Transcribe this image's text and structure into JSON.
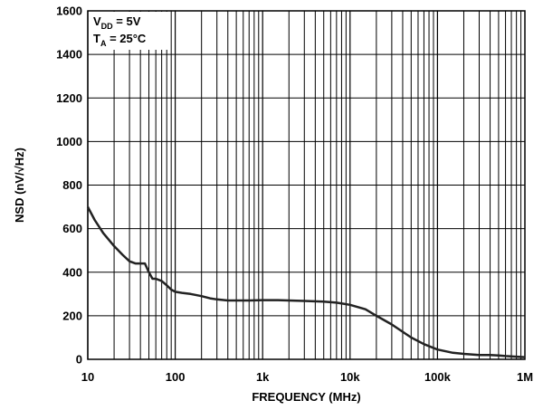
{
  "chart_data": {
    "type": "line",
    "xlabel": "FREQUENCY (MHz)",
    "ylabel": "NSD (nV/√Hz)",
    "xscale": "log",
    "xlim": [
      10,
      1000000
    ],
    "ylim": [
      0,
      1600
    ],
    "grid": true,
    "x_tick_labels": [
      "10",
      "100",
      "1k",
      "10k",
      "100k",
      "1M"
    ],
    "y_tick_labels": [
      "0",
      "200",
      "400",
      "600",
      "800",
      "1000",
      "1200",
      "1400",
      "1600"
    ],
    "legend_position": "top-left",
    "annotation": {
      "line1": {
        "main": "V",
        "sub": "DD",
        "rest": " = 5V"
      },
      "line2": {
        "main": "T",
        "sub": "A",
        "rest": " = 25°C"
      }
    },
    "series": [
      {
        "color": "#222222",
        "x": [
          10,
          12,
          15,
          20,
          25,
          30,
          35,
          40,
          45,
          50,
          55,
          60,
          70,
          80,
          90,
          100,
          120,
          150,
          200,
          250,
          300,
          400,
          500,
          700,
          1000,
          1500,
          2000,
          3000,
          5000,
          7000,
          10000,
          15000,
          20000,
          30000,
          50000,
          70000,
          100000,
          150000,
          200000,
          300000,
          400000,
          500000,
          600000,
          800000,
          1000000
        ],
        "y": [
          700,
          640,
          580,
          520,
          480,
          450,
          440,
          440,
          440,
          400,
          370,
          370,
          360,
          340,
          320,
          310,
          305,
          300,
          290,
          280,
          275,
          270,
          270,
          270,
          272,
          272,
          270,
          268,
          265,
          260,
          250,
          230,
          200,
          160,
          100,
          70,
          45,
          30,
          25,
          20,
          20,
          18,
          15,
          12,
          10
        ]
      }
    ]
  }
}
